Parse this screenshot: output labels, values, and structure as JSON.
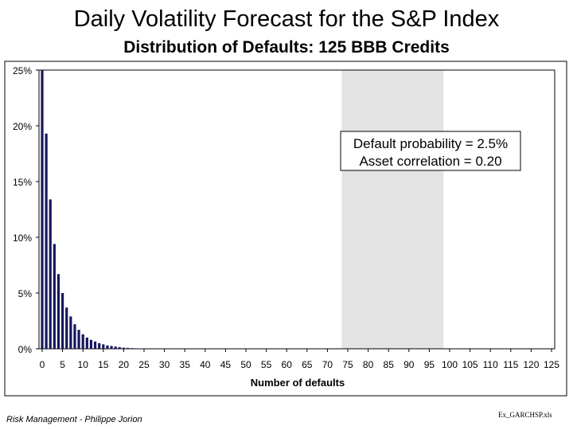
{
  "slide": {
    "title": "Daily Volatility Forecast for the S&P Index",
    "footer_left": "Risk Management - Philippe Jorion",
    "footer_right": "Ex_GARCHSP.xls"
  },
  "chart_data": {
    "type": "bar",
    "title": "Distribution of Defaults: 125 BBB Credits",
    "xlabel": "Number of defaults",
    "ylabel": "",
    "xlim": [
      0,
      125
    ],
    "ylim": [
      0,
      0.25
    ],
    "x_ticks": [
      0,
      5,
      10,
      15,
      20,
      25,
      30,
      35,
      40,
      45,
      50,
      55,
      60,
      65,
      70,
      75,
      80,
      85,
      90,
      95,
      100,
      105,
      110,
      115,
      120,
      125
    ],
    "y_ticks": [
      0,
      0.05,
      0.1,
      0.15,
      0.2,
      0.25
    ],
    "y_tick_labels": [
      "0%",
      "5%",
      "10%",
      "15%",
      "20%",
      "25%"
    ],
    "grid": false,
    "bar_color": "#16165e",
    "shaded_region": {
      "x_range": [
        73.5,
        98.5
      ],
      "color": "#e3e3e3"
    },
    "annotation": {
      "lines": [
        "Default probability = 2.5%",
        "Asset correlation = 0.20"
      ]
    },
    "x": [
      0,
      1,
      2,
      3,
      4,
      5,
      6,
      7,
      8,
      9,
      10,
      11,
      12,
      13,
      14,
      15,
      16,
      17,
      18,
      19,
      20,
      21,
      22,
      23,
      24
    ],
    "values": [
      0.25,
      0.193,
      0.134,
      0.094,
      0.067,
      0.05,
      0.037,
      0.029,
      0.022,
      0.017,
      0.013,
      0.01,
      0.008,
      0.0065,
      0.005,
      0.004,
      0.003,
      0.0025,
      0.002,
      0.0015,
      0.001,
      0.0008,
      0.0006,
      0.0004,
      0.0003
    ]
  }
}
